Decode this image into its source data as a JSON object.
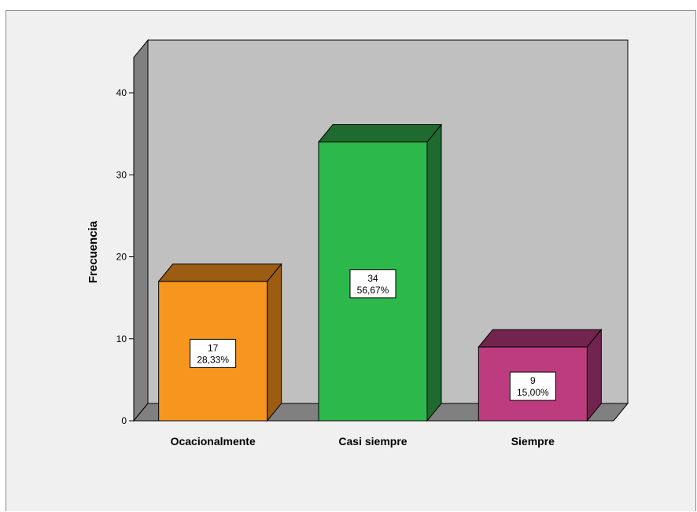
{
  "chart_data": {
    "type": "bar",
    "style": "3d",
    "title": "",
    "xlabel": "",
    "ylabel": "Frecuencia",
    "ylim": [
      0,
      40
    ],
    "yticks": [
      0,
      10,
      20,
      30,
      40
    ],
    "grid": false,
    "legend": "none",
    "categories": [
      "Ocacionalmente",
      "Casi siempre",
      "Siempre"
    ],
    "values": [
      17,
      34,
      9
    ],
    "percent_labels": [
      "28,33%",
      "56,67%",
      "15,00%"
    ],
    "colors": [
      "#f7961e",
      "#2db84b",
      "#bd3c7f"
    ],
    "side_colors": [
      "#9c5c12",
      "#1f6b2f",
      "#72244e"
    ],
    "wall_color": "#c0c0c0",
    "floor_color": "#808080"
  }
}
